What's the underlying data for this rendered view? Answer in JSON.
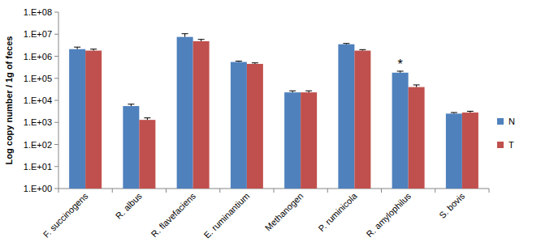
{
  "chart_data": {
    "type": "bar",
    "y_label": "Log copy number / 1g of feces",
    "log": "y",
    "grid": false,
    "legend": "right",
    "categories": [
      "F. succinogens",
      "R. albus",
      "R. flavefaciens",
      "E. ruminantium",
      "Methanogen",
      "P. ruminicola",
      "R. amylophilus",
      "S. bovis"
    ],
    "series": [
      {
        "name": "N",
        "color": "#4f81bd",
        "values": [
          2100000,
          5500,
          7500000,
          550000,
          23000,
          3500000,
          180000,
          2500
        ],
        "errors": [
          500000,
          1200,
          3000000,
          50000,
          4000,
          300000,
          30000,
          300
        ]
      },
      {
        "name": "T",
        "color": "#c0504d",
        "values": [
          1800000,
          1300,
          4800000,
          450000,
          23000,
          1800000,
          40000,
          2800
        ],
        "errors": [
          300000,
          300,
          1000000,
          50000,
          4000,
          200000,
          10000,
          400
        ]
      }
    ],
    "ylim": [
      1,
      100000000
    ],
    "yticks": [
      {
        "value": 1,
        "label": "1.E+00"
      },
      {
        "value": 10,
        "label": "1.E+01"
      },
      {
        "value": 100,
        "label": "1.E+02"
      },
      {
        "value": 1000,
        "label": "1.E+03"
      },
      {
        "value": 10000,
        "label": "1.E+04"
      },
      {
        "value": 100000,
        "label": "1.E+05"
      },
      {
        "value": 1000000,
        "label": "1.E+06"
      },
      {
        "value": 10000000,
        "label": "1.E+07"
      },
      {
        "value": 100000000,
        "label": "1.E+08"
      }
    ],
    "annotations": [
      {
        "text": "*",
        "category": "R. amylophilus",
        "series": "N"
      }
    ]
  }
}
